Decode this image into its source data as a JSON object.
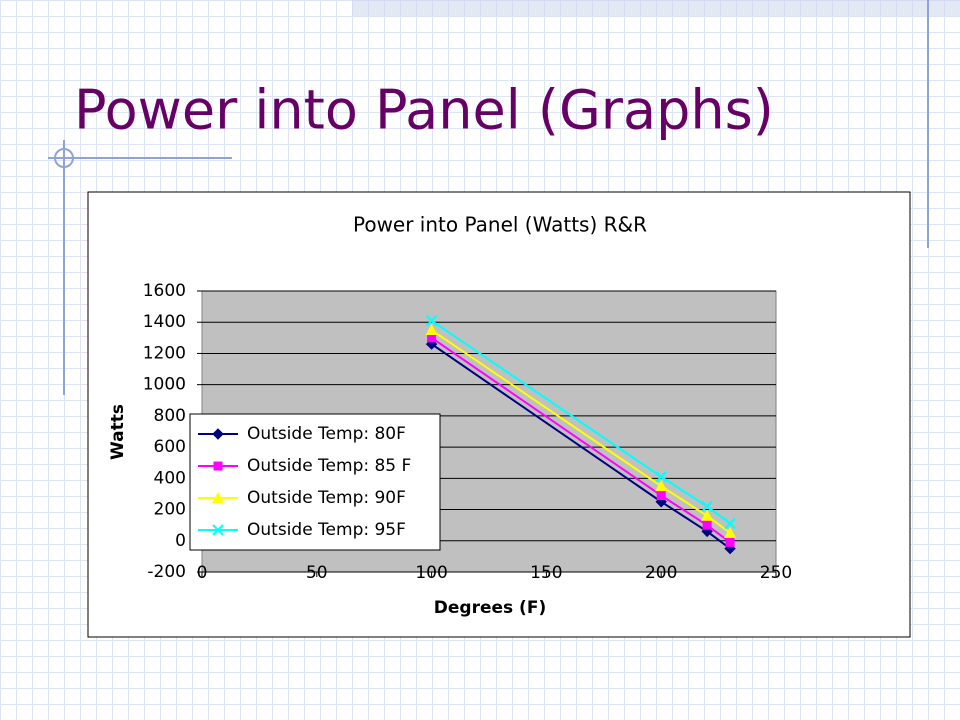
{
  "slide_title": "Power into Panel (Graphs)",
  "chart_data": {
    "type": "line",
    "title": "Power into Panel (Watts) R&R",
    "x_label": "Degrees (F)",
    "y_label": "Watts",
    "x": [
      100,
      200,
      220,
      230
    ],
    "series": [
      {
        "name": "Outside Temp: 80F",
        "color": "#000080",
        "marker": "diamond",
        "values": [
          1260,
          250,
          60,
          -50
        ]
      },
      {
        "name": "Outside Temp: 85 F",
        "color": "#ff00ff",
        "marker": "square",
        "values": [
          1300,
          290,
          100,
          -10
        ]
      },
      {
        "name": "Outside Temp: 90F",
        "color": "#ffff00",
        "marker": "triangle",
        "values": [
          1350,
          350,
          160,
          50
        ]
      },
      {
        "name": "Outside Temp: 95F",
        "color": "#00ffff",
        "marker": "x",
        "values": [
          1410,
          410,
          220,
          110
        ]
      }
    ],
    "xlim": [
      0,
      250
    ],
    "xticks": [
      0,
      50,
      100,
      150,
      200,
      250
    ],
    "ylim": [
      -200,
      1600
    ],
    "yticks": [
      -200,
      0,
      200,
      400,
      600,
      800,
      1000,
      1200,
      1400,
      1600
    ],
    "grid": true,
    "legend": "bottom-left"
  }
}
